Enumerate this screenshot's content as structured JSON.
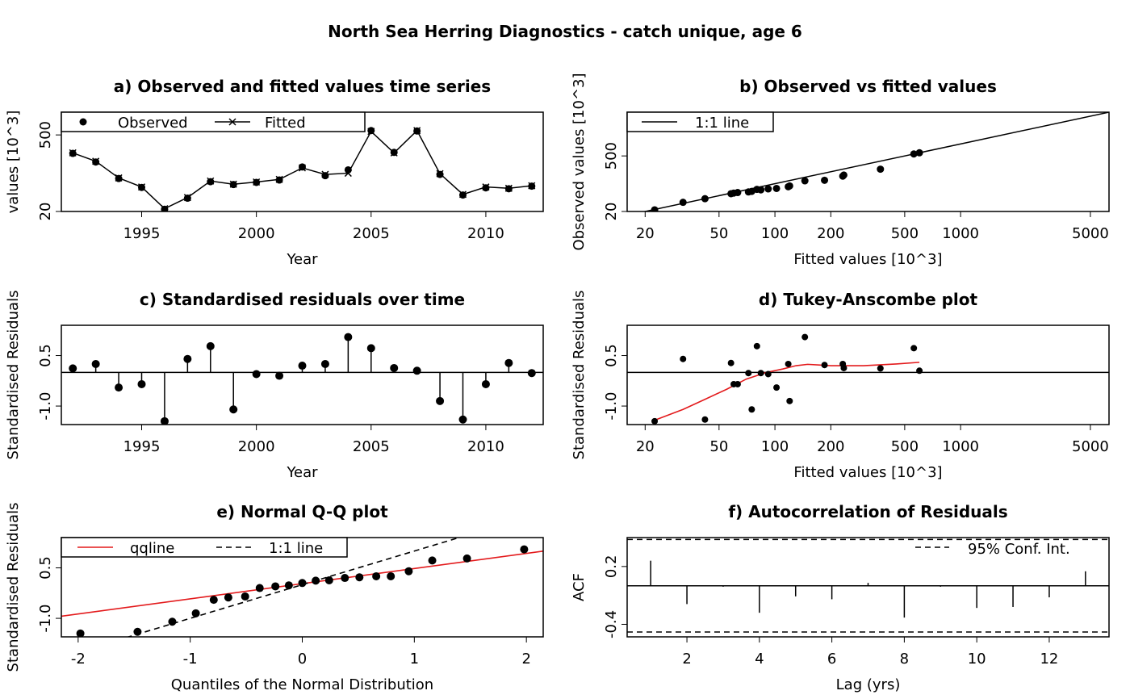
{
  "main_title": "North Sea Herring Diagnostics - catch unique, age 6",
  "chart_data": [
    {
      "id": "a",
      "type": "line",
      "title": "a) Observed and fitted values time series",
      "xlabel": "Year",
      "ylabel": "values [10^3]",
      "y_scale": "log",
      "xlim": [
        1991.5,
        2012.5
      ],
      "ylim": [
        20,
        1300
      ],
      "x_ticks": [
        1995,
        2000,
        2005,
        2010
      ],
      "x_tick_labels": [
        "1995",
        "2000",
        "2005",
        "2010"
      ],
      "y_ticks": [
        20,
        500
      ],
      "y_tick_labels": [
        "20",
        "500"
      ],
      "legend": {
        "position": "top-left",
        "entries": [
          "Observed",
          "Fitted"
        ]
      },
      "x": [
        1992,
        1993,
        1994,
        1995,
        1996,
        1997,
        1998,
        1999,
        2000,
        2001,
        2002,
        2003,
        2004,
        2005,
        2006,
        2007,
        2008,
        2009,
        2010,
        2011,
        2012
      ],
      "series": [
        {
          "name": "Observed",
          "values": [
            230,
            160,
            80,
            55,
            22,
            35,
            70,
            62,
            68,
            75,
            130,
            90,
            115,
            600,
            240,
            590,
            95,
            40,
            54,
            52,
            58
          ]
        },
        {
          "name": "Fitted",
          "values": [
            235,
            165,
            82,
            56,
            22.5,
            36,
            72,
            63,
            69,
            77,
            125,
            95,
            100,
            580,
            235,
            600,
            98,
            41,
            56,
            53,
            59
          ]
        }
      ]
    },
    {
      "id": "b",
      "type": "scatter",
      "title": "b) Observed vs fitted values",
      "xlabel": "Fitted values [10^3]",
      "ylabel": "Observed values [10^3]",
      "x_scale": "log",
      "y_scale": "log",
      "xlim": [
        16,
        6300
      ],
      "ylim": [
        20,
        6300
      ],
      "x_ticks": [
        20,
        50,
        100,
        200,
        500,
        1000,
        5000
      ],
      "x_tick_labels": [
        "20",
        "50",
        "100",
        "200",
        "500",
        "1000",
        "5000"
      ],
      "y_ticks": [
        20,
        500
      ],
      "y_tick_labels": [
        "20",
        "500"
      ],
      "legend": {
        "position": "top-left",
        "entries": [
          "1:1 line"
        ]
      },
      "points": [
        [
          22.5,
          22
        ],
        [
          32,
          34
        ],
        [
          42,
          42
        ],
        [
          58,
          56
        ],
        [
          60,
          58
        ],
        [
          63,
          60
        ],
        [
          72,
          62
        ],
        [
          75,
          64
        ],
        [
          80,
          72
        ],
        [
          84,
          70
        ],
        [
          92,
          74
        ],
        [
          102,
          76
        ],
        [
          118,
          84
        ],
        [
          120,
          88
        ],
        [
          145,
          118
        ],
        [
          185,
          122
        ],
        [
          232,
          155
        ],
        [
          235,
          165
        ],
        [
          370,
          232
        ],
        [
          560,
          560
        ],
        [
          600,
          600
        ]
      ]
    },
    {
      "id": "c",
      "type": "bar",
      "title": "c) Standardised residuals over time",
      "xlabel": "Year",
      "ylabel": "Standardised Residuals",
      "xlim": [
        1991.5,
        2012.5
      ],
      "ylim": [
        -1.55,
        1.4
      ],
      "x_ticks": [
        1995,
        2000,
        2005,
        2010
      ],
      "x_tick_labels": [
        "1995",
        "2000",
        "2005",
        "2010"
      ],
      "y_ticks": [
        -1.0,
        0.5
      ],
      "y_tick_labels": [
        "-1.0",
        "0.5"
      ],
      "x": [
        1992,
        1993,
        1994,
        1995,
        1996,
        1997,
        1998,
        1999,
        2000,
        2001,
        2002,
        2003,
        2004,
        2005,
        2006,
        2007,
        2008,
        2009,
        2010,
        2011,
        2012
      ],
      "values": [
        0.12,
        0.25,
        -0.45,
        -0.35,
        -1.45,
        0.4,
        0.78,
        -1.1,
        -0.05,
        -0.1,
        0.2,
        0.25,
        1.05,
        0.72,
        0.13,
        0.05,
        -0.85,
        -1.4,
        -0.35,
        0.28,
        -0.02
      ]
    },
    {
      "id": "d",
      "type": "scatter",
      "title": "d) Tukey-Anscombe plot",
      "xlabel": "Fitted values [10^3]",
      "ylabel": "Standardised Residuals",
      "x_scale": "log",
      "xlim": [
        16,
        6300
      ],
      "ylim": [
        -1.55,
        1.4
      ],
      "x_ticks": [
        20,
        50,
        100,
        200,
        500,
        1000,
        5000
      ],
      "x_tick_labels": [
        "20",
        "50",
        "100",
        "200",
        "500",
        "1000",
        "5000"
      ],
      "y_ticks": [
        -1.0,
        0.5
      ],
      "y_tick_labels": [
        "-1.0",
        "0.5"
      ],
      "points": [
        [
          22.5,
          -1.45
        ],
        [
          32,
          0.4
        ],
        [
          42,
          -1.4
        ],
        [
          58,
          0.28
        ],
        [
          60,
          -0.35
        ],
        [
          63,
          -0.35
        ],
        [
          72,
          -0.02
        ],
        [
          75,
          -1.1
        ],
        [
          80,
          0.78
        ],
        [
          84,
          -0.02
        ],
        [
          92,
          -0.05
        ],
        [
          102,
          -0.45
        ],
        [
          118,
          0.25
        ],
        [
          120,
          -0.85
        ],
        [
          145,
          1.05
        ],
        [
          185,
          0.22
        ],
        [
          232,
          0.25
        ],
        [
          235,
          0.13
        ],
        [
          370,
          0.12
        ],
        [
          560,
          0.72
        ],
        [
          600,
          0.05
        ]
      ],
      "smooth_line": [
        [
          22.5,
          -1.42
        ],
        [
          32,
          -1.1
        ],
        [
          42,
          -0.8
        ],
        [
          55,
          -0.5
        ],
        [
          70,
          -0.2
        ],
        [
          90,
          0.0
        ],
        [
          110,
          0.1
        ],
        [
          130,
          0.2
        ],
        [
          150,
          0.24
        ],
        [
          200,
          0.2
        ],
        [
          300,
          0.2
        ],
        [
          450,
          0.25
        ],
        [
          600,
          0.3
        ]
      ]
    },
    {
      "id": "e",
      "type": "scatter",
      "title": "e) Normal Q-Q plot",
      "xlabel": "Quantiles of the Normal Distribution",
      "ylabel": "Standardised Residuals",
      "xlim": [
        -2.15,
        2.15
      ],
      "ylim": [
        -1.55,
        1.4
      ],
      "x_ticks": [
        -2,
        -1,
        0,
        1,
        2
      ],
      "x_tick_labels": [
        "-2",
        "-1",
        "0",
        "1",
        "2"
      ],
      "y_ticks": [
        -1.0,
        0.5
      ],
      "y_tick_labels": [
        "-1.0",
        "0.5"
      ],
      "legend": {
        "position": "top-left",
        "entries": [
          "qqline",
          "1:1 line"
        ]
      },
      "points": [
        [
          -1.98,
          -1.45
        ],
        [
          -1.47,
          -1.4
        ],
        [
          -1.16,
          -1.1
        ],
        [
          -0.95,
          -0.85
        ],
        [
          -0.79,
          -0.45
        ],
        [
          -0.66,
          -0.38
        ],
        [
          -0.51,
          -0.35
        ],
        [
          -0.38,
          -0.1
        ],
        [
          -0.24,
          -0.05
        ],
        [
          -0.12,
          -0.02
        ],
        [
          0.0,
          0.05
        ],
        [
          0.12,
          0.12
        ],
        [
          0.24,
          0.13
        ],
        [
          0.38,
          0.2
        ],
        [
          0.51,
          0.22
        ],
        [
          0.66,
          0.25
        ],
        [
          0.79,
          0.25
        ],
        [
          0.95,
          0.4
        ],
        [
          1.16,
          0.72
        ],
        [
          1.47,
          0.78
        ],
        [
          1.98,
          1.05
        ]
      ],
      "qqline": {
        "intercept": 0.03,
        "slope": 0.45
      },
      "identity_line": {
        "intercept": 0,
        "slope": 1
      }
    },
    {
      "id": "f",
      "type": "bar",
      "title": "f) Autocorrelation of Residuals",
      "xlabel": "Lag (yrs)",
      "ylabel": "ACF",
      "xlim": [
        0.35,
        13.65
      ],
      "ylim": [
        -0.53,
        0.5
      ],
      "x_ticks": [
        2,
        4,
        6,
        8,
        10,
        12
      ],
      "x_tick_labels": [
        "2",
        "4",
        "6",
        "8",
        "10",
        "12"
      ],
      "y_ticks": [
        -0.4,
        0.2
      ],
      "y_tick_labels": [
        "-0.4",
        "0.2"
      ],
      "legend": {
        "position": "top-right",
        "entries": [
          "95% Conf. Int."
        ]
      },
      "x": [
        1,
        2,
        3,
        4,
        5,
        6,
        7,
        8,
        9,
        10,
        11,
        12,
        13
      ],
      "values": [
        0.26,
        -0.19,
        -0.01,
        -0.28,
        -0.11,
        -0.14,
        0.03,
        -0.33,
        -0.01,
        -0.23,
        -0.22,
        -0.12,
        0.15
      ],
      "conf_int": [
        -0.48,
        0.48
      ]
    }
  ]
}
